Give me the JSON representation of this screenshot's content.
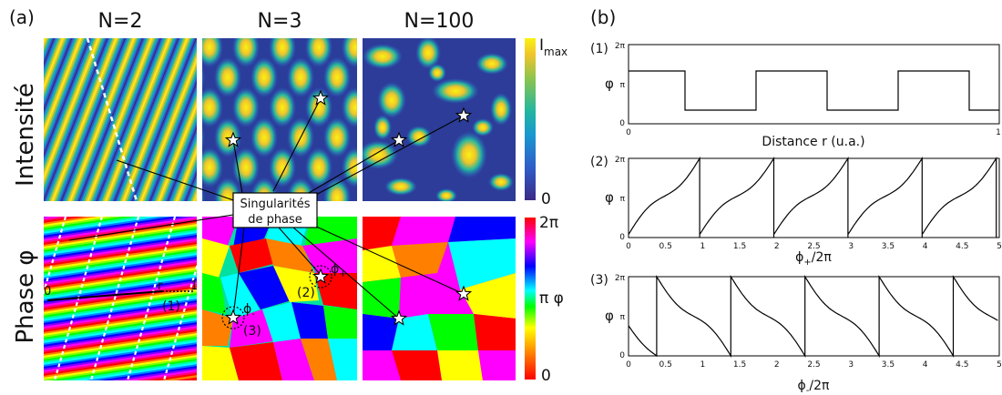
{
  "panel_a": {
    "label": "(a)",
    "columns": [
      "N=2",
      "N=3",
      "N=100"
    ],
    "row_labels": [
      "Intensité",
      "Phase φ"
    ],
    "intensity_colorbar": {
      "max_label": "I",
      "max_sub": "max",
      "min_label": "0"
    },
    "phase_colorbar": {
      "max_label": "2π",
      "mid_label": "π φ",
      "min_label": "0"
    },
    "callout_line1": "Singularités",
    "callout_line2": "de phase",
    "profile_labels": {
      "zero": "0",
      "r": "r",
      "one": "1",
      "tag": "(1)"
    },
    "markers": {
      "tag2": "(2)",
      "tag3": "(3)",
      "phi_plus": "ϕ",
      "phi_plus_sub": "+",
      "phi_minus": "ϕ",
      "phi_minus_sub": "-"
    }
  },
  "panel_b": {
    "label": "(b)",
    "plots": [
      {
        "tag": "(1)",
        "ylabel": "φ",
        "yticks": [
          "2π",
          "π",
          "0"
        ],
        "xticks": [
          "0",
          "1"
        ],
        "xlabel": "Distance r (u.a.)"
      },
      {
        "tag": "(2)",
        "ylabel": "φ",
        "yticks": [
          "2π",
          "π",
          "0"
        ],
        "xticks": [
          "0",
          "0.5",
          "1",
          "1.5",
          "2",
          "2.5",
          "3",
          "3.5",
          "4",
          "4.5",
          "5"
        ],
        "xlabel": "ϕ",
        "xlabel_sub": "+",
        "xlabel_tail": "/2π"
      },
      {
        "tag": "(3)",
        "ylabel": "φ",
        "yticks": [
          "2π",
          "π",
          "0"
        ],
        "xticks": [
          "0",
          "0.5",
          "1",
          "1.5",
          "2",
          "2.5",
          "3",
          "3.5",
          "4",
          "4.5",
          "5"
        ],
        "xlabel": "ϕ",
        "xlabel_sub": "-",
        "xlabel_tail": "/2π"
      }
    ]
  },
  "colors": {
    "intensity_map": [
      "#3b2a86",
      "#2f5dc8",
      "#1997d0",
      "#22b6a0",
      "#8cc44e",
      "#f0c52b",
      "#f9f211"
    ],
    "phase_map": [
      "#ff0000",
      "#ff8000",
      "#ffff00",
      "#00ff00",
      "#00ffff",
      "#0000ff",
      "#ff00ff",
      "#ff0000"
    ]
  }
}
